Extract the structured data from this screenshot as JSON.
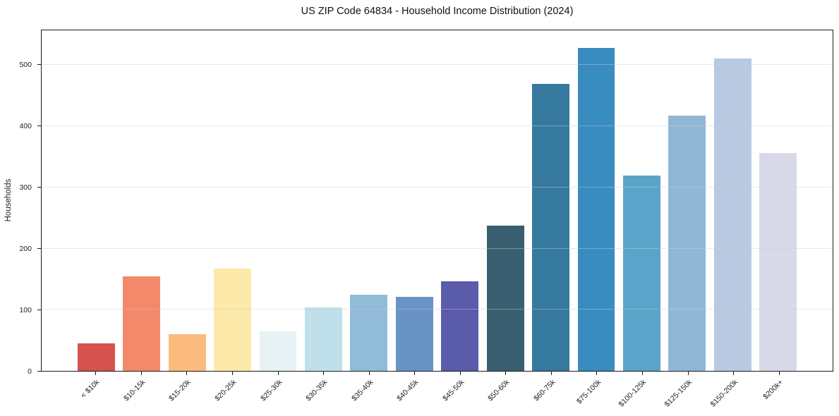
{
  "chart_data": {
    "type": "bar",
    "title": "US ZIP Code 64834 - Household Income Distribution (2024)",
    "xlabel": "",
    "ylabel": "Households",
    "categories": [
      "< $10k",
      "$10-15k",
      "$15-20k",
      "$20-25k",
      "$25-30k",
      "$30-35k",
      "$35-40k",
      "$40-45k",
      "$45-50k",
      "$50-60k",
      "$60-75k",
      "$75-100k",
      "$100-125k",
      "$125-150k",
      "$150-200k",
      "$200k+"
    ],
    "values": [
      45,
      154,
      60,
      167,
      65,
      104,
      125,
      121,
      147,
      237,
      469,
      528,
      320,
      417,
      511,
      356
    ],
    "bar_colors": [
      "#d4534e",
      "#f3896a",
      "#fbbb7d",
      "#fde9a9",
      "#e7f2f4",
      "#bfe0ea",
      "#91bbd8",
      "#6a93c5",
      "#5a5bab",
      "#395e6f",
      "#36799f",
      "#388cc0",
      "#5ba4c9",
      "#90b7d6",
      "#b9c9e2",
      "#d7d9e8"
    ],
    "yticks": [
      0,
      100,
      200,
      300,
      400,
      500
    ],
    "ylim": [
      0,
      557
    ],
    "grid": true,
    "grid_on_top": true,
    "legend_position": "none",
    "background": "#ffffff",
    "spine_color": "#1a1a1a"
  }
}
